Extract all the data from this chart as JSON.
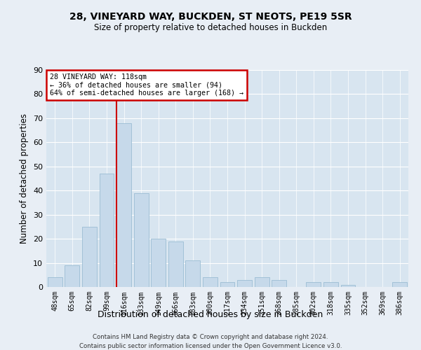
{
  "title1": "28, VINEYARD WAY, BUCKDEN, ST NEOTS, PE19 5SR",
  "title2": "Size of property relative to detached houses in Buckden",
  "xlabel": "Distribution of detached houses by size in Buckden",
  "ylabel": "Number of detached properties",
  "categories": [
    "48sqm",
    "65sqm",
    "82sqm",
    "99sqm",
    "116sqm",
    "133sqm",
    "149sqm",
    "166sqm",
    "183sqm",
    "200sqm",
    "217sqm",
    "234sqm",
    "251sqm",
    "268sqm",
    "285sqm",
    "302sqm",
    "318sqm",
    "335sqm",
    "352sqm",
    "369sqm",
    "386sqm"
  ],
  "values": [
    4,
    9,
    25,
    47,
    68,
    39,
    20,
    19,
    11,
    4,
    2,
    3,
    4,
    3,
    0,
    2,
    2,
    1,
    0,
    0,
    2
  ],
  "bar_color": "#c6d9ea",
  "bar_edge_color": "#9bbdd4",
  "vline_x_index": 4,
  "vline_color": "#cc0000",
  "ylim": [
    0,
    90
  ],
  "yticks": [
    0,
    10,
    20,
    30,
    40,
    50,
    60,
    70,
    80,
    90
  ],
  "annotation_title": "28 VINEYARD WAY: 118sqm",
  "annotation_line1": "← 36% of detached houses are smaller (94)",
  "annotation_line2": "64% of semi-detached houses are larger (168) →",
  "annotation_box_color": "#cc0000",
  "footer1": "Contains HM Land Registry data © Crown copyright and database right 2024.",
  "footer2": "Contains public sector information licensed under the Open Government Licence v3.0.",
  "bg_color": "#e8eef5",
  "plot_bg_color": "#d8e5f0"
}
